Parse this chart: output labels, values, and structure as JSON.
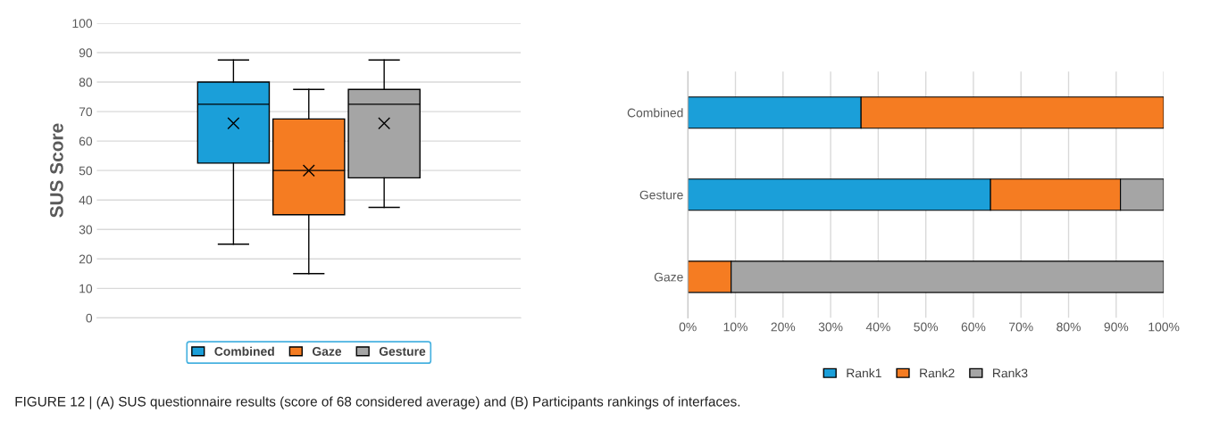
{
  "chart_data": [
    {
      "type": "box",
      "ylabel": "SUS Score",
      "categories": [
        null
      ],
      "ylim": [
        0,
        100
      ],
      "yticks": [
        0,
        10,
        20,
        30,
        40,
        50,
        60,
        70,
        80,
        90,
        100
      ],
      "grid": "y",
      "legend": "bottom",
      "tick_labels": "y",
      "series": [
        {
          "name": "Combined",
          "color": "#1b9fd9",
          "boxes": [
            {
              "low": 25,
              "q1": 52.5,
              "median": 72.5,
              "q3": 80,
              "high": 87.5,
              "mean": 66
            }
          ]
        },
        {
          "name": "Gaze",
          "color": "#f57c22",
          "boxes": [
            {
              "low": 15,
              "q1": 35,
              "median": 50,
              "q3": 67.5,
              "high": 77.5,
              "mean": 50
            }
          ]
        },
        {
          "name": "Gesture",
          "color": "#a5a5a5",
          "boxes": [
            {
              "low": 37.5,
              "q1": 47.5,
              "median": 72.5,
              "q3": 77.5,
              "high": 87.5,
              "mean": 66
            }
          ]
        }
      ],
      "annotations": [
        "FIGURE 12 | (A) SUS questionnaire results (score of 68 considered average) and (B) Participants rankings of interfaces."
      ]
    },
    {
      "type": "bar",
      "orientation": "horizontal",
      "stacked": true,
      "categories": [
        "Combined",
        "Gesture",
        "Gaze"
      ],
      "xlim": [
        0,
        100
      ],
      "grid": "x",
      "legend": "bottom",
      "xticks": [
        {
          "value": 0,
          "label": "0%"
        },
        {
          "value": 10,
          "label": "10%"
        },
        {
          "value": 20,
          "label": "20%"
        },
        {
          "value": 30,
          "label": "30%"
        },
        {
          "value": 40,
          "label": "40%"
        },
        {
          "value": 50,
          "label": "50%"
        },
        {
          "value": 60,
          "label": "60%"
        },
        {
          "value": 70,
          "label": "70%"
        },
        {
          "value": 80,
          "label": "80%"
        },
        {
          "value": 90,
          "label": "90%"
        },
        {
          "value": 100,
          "label": "100%"
        }
      ],
      "series": [
        {
          "name": "Rank1",
          "color": "#1b9fd9",
          "values": [
            36.4,
            63.6,
            0
          ]
        },
        {
          "name": "Rank2",
          "color": "#f57c22",
          "values": [
            63.6,
            27.3,
            9.1
          ]
        },
        {
          "name": "Rank3",
          "color": "#a5a5a5",
          "values": [
            0,
            9.1,
            90.9
          ]
        }
      ]
    }
  ]
}
